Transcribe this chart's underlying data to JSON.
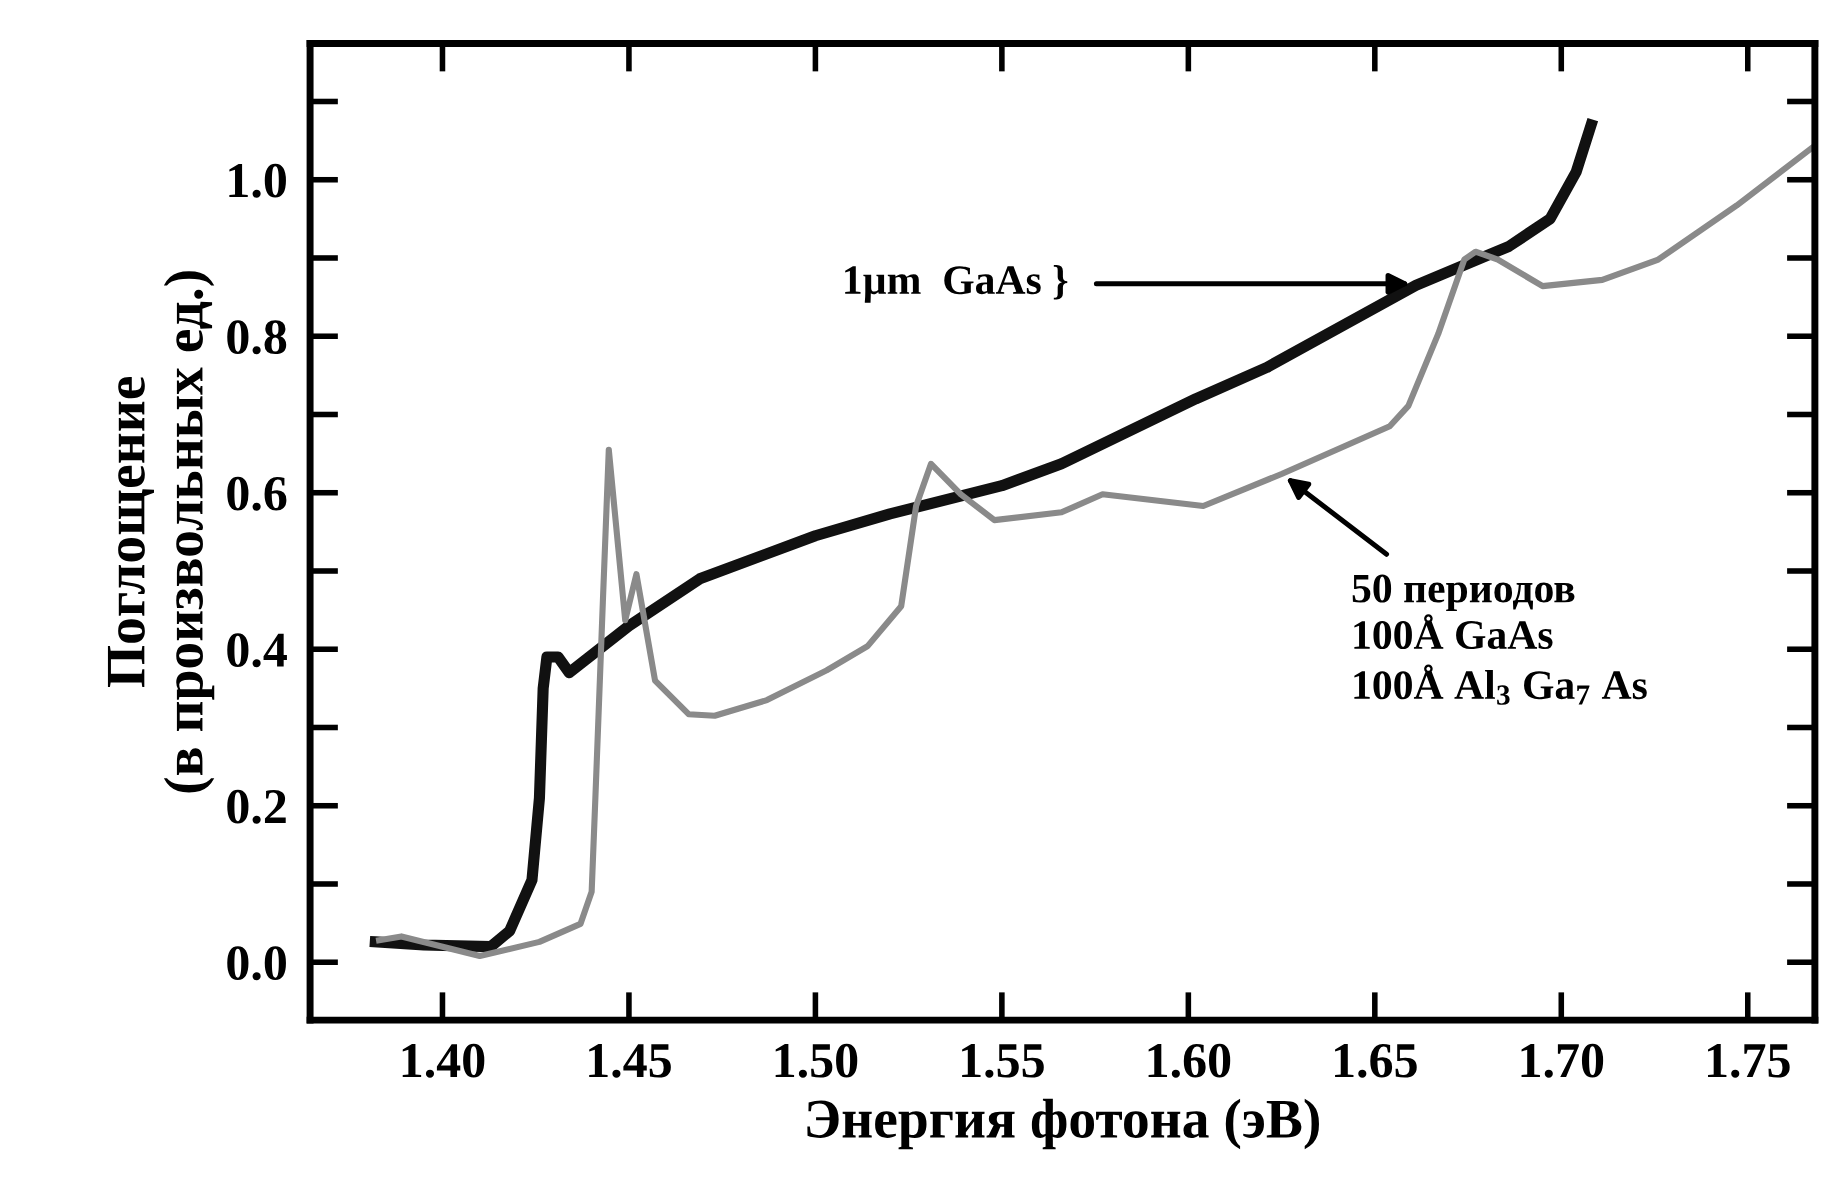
{
  "chart_data": {
    "type": "line",
    "xlabel": "Энергия фотона (эВ)",
    "ylabel": "Поглощение\n(в произвольных ед.)",
    "xlim": [
      1.3645,
      1.768
    ],
    "ylim": [
      -0.074,
      1.174
    ],
    "xticks": [
      {
        "value": 1.4,
        "label": "1.40"
      },
      {
        "value": 1.45,
        "label": "1.45"
      },
      {
        "value": 1.5,
        "label": "1.50"
      },
      {
        "value": 1.55,
        "label": "1.55"
      },
      {
        "value": 1.6,
        "label": "1.60"
      },
      {
        "value": 1.65,
        "label": "1.65"
      },
      {
        "value": 1.7,
        "label": "1.70"
      },
      {
        "value": 1.75,
        "label": "1.75"
      }
    ],
    "yticks": [
      {
        "value": 0.0,
        "label": "0.0"
      },
      {
        "value": 0.1,
        "label": null
      },
      {
        "value": 0.2,
        "label": "0.2"
      },
      {
        "value": 0.3,
        "label": null
      },
      {
        "value": 0.4,
        "label": "0.4"
      },
      {
        "value": 0.5,
        "label": null
      },
      {
        "value": 0.6,
        "label": "0.6"
      },
      {
        "value": 0.7,
        "label": null
      },
      {
        "value": 0.8,
        "label": "0.8"
      },
      {
        "value": 0.9,
        "label": null
      },
      {
        "value": 1.0,
        "label": "1.0"
      },
      {
        "value": 1.1,
        "label": null
      }
    ],
    "grid": false,
    "legend": false,
    "marker": "none",
    "line_style": "solid",
    "series": [
      {
        "color": "#111111",
        "x": [
          1.382,
          1.395,
          1.413,
          1.418,
          1.424,
          1.426,
          1.427,
          1.428,
          1.431,
          1.434,
          1.45,
          1.469,
          1.5,
          1.52,
          1.55,
          1.566,
          1.602,
          1.621,
          1.661,
          1.686,
          1.697,
          1.704,
          1.708
        ],
        "values": [
          0.026,
          0.022,
          0.02,
          0.04,
          0.105,
          0.21,
          0.35,
          0.39,
          0.39,
          0.37,
          0.43,
          0.49,
          0.545,
          0.573,
          0.609,
          0.637,
          0.72,
          0.76,
          0.865,
          0.915,
          0.95,
          1.01,
          1.07
        ]
      },
      {
        "color": "#8a8a8a",
        "x": [
          1.383,
          1.389,
          1.41,
          1.426,
          1.437,
          1.44,
          1.441,
          1.443,
          1.4446,
          1.449,
          1.452,
          1.457,
          1.466,
          1.473,
          1.487,
          1.503,
          1.514,
          1.523,
          1.527,
          1.531,
          1.539,
          1.548,
          1.566,
          1.577,
          1.604,
          1.625,
          1.654,
          1.659,
          1.667,
          1.674,
          1.677,
          1.683,
          1.695,
          1.711,
          1.726,
          1.747,
          1.767
        ],
        "values": [
          0.028,
          0.033,
          0.008,
          0.026,
          0.049,
          0.09,
          0.21,
          0.46,
          0.655,
          0.437,
          0.496,
          0.36,
          0.317,
          0.315,
          0.335,
          0.373,
          0.404,
          0.455,
          0.583,
          0.637,
          0.598,
          0.565,
          0.575,
          0.598,
          0.583,
          0.624,
          0.685,
          0.711,
          0.803,
          0.898,
          0.908,
          0.898,
          0.864,
          0.872,
          0.898,
          0.967,
          1.04
        ]
      }
    ],
    "annotations": [
      {
        "text": "1µm  GaAs }",
        "x": 1.661,
        "y": 0.867
      },
      {
        "text": "50 периодов\n100Å GaAs\n100Å Al$_{3}$ Ga$_{7}$ As",
        "x": 1.625,
        "y": 0.624
      }
    ]
  }
}
